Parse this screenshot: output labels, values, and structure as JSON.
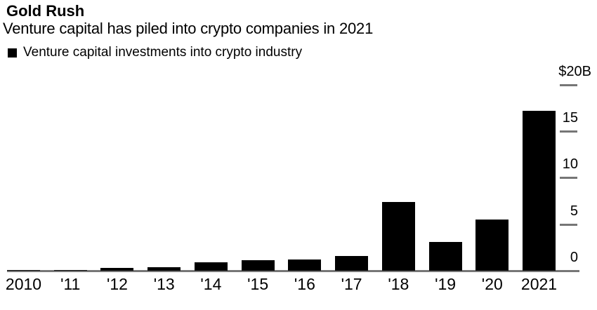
{
  "chart_data": {
    "type": "bar",
    "title": "Gold Rush",
    "subtitle": "Venture capital has piled into crypto companies in 2021",
    "legend_label": "Venture capital investments into crypto industry",
    "legend_position": "top-left",
    "categories": [
      "2010",
      "2011",
      "2012",
      "2013",
      "2014",
      "2015",
      "2016",
      "2017",
      "2018",
      "2019",
      "2020",
      "2021"
    ],
    "x_tick_labels": [
      "2010",
      "'11",
      "'12",
      "'13",
      "'14",
      "'15",
      "'16",
      "'17",
      "'18",
      "'19",
      "'20",
      "2021"
    ],
    "values": [
      0.1,
      0.1,
      0.3,
      0.4,
      0.9,
      1.1,
      1.2,
      1.6,
      7.4,
      3.1,
      5.5,
      17.2
    ],
    "unit": "$B",
    "xlabel": "",
    "ylabel": "",
    "ylim": [
      0,
      20
    ],
    "grid": false,
    "y_axis": {
      "side": "right",
      "tick_values": [
        0,
        5,
        10,
        15,
        20
      ],
      "tick_labels": [
        "0",
        "5",
        "10",
        "15",
        "$20B"
      ]
    },
    "bar_color": "#000000",
    "axis_color": "#767676",
    "text_color": "#000000",
    "background_color": "#ffffff"
  }
}
